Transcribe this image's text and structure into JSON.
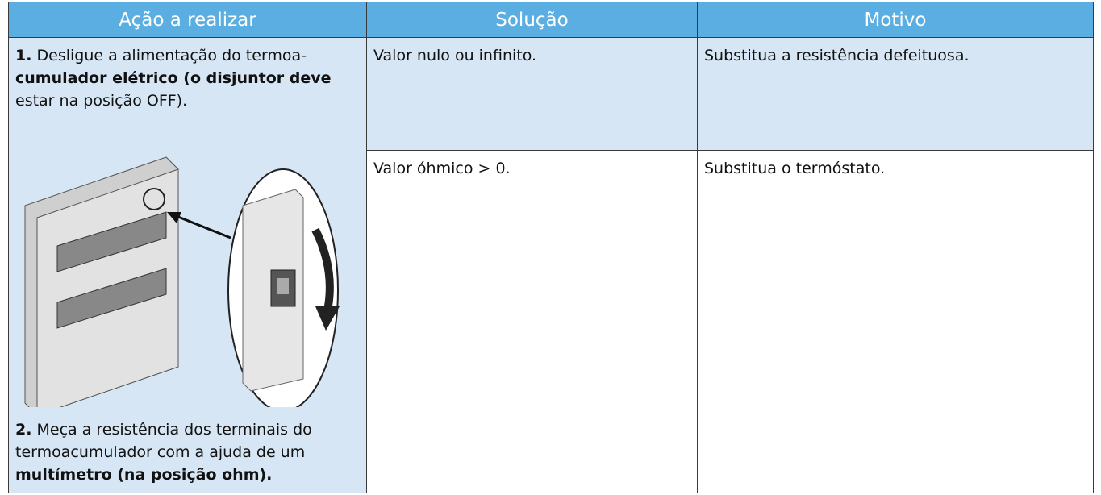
{
  "table": {
    "headers": [
      "Ação a realizar",
      "Solução",
      "Motivo"
    ],
    "step1": {
      "number": "1.",
      "lines": [
        "Desligue a alimentação do termoa-",
        "cumulador elétrico (o disjuntor deve",
        "estar na posição OFF)."
      ]
    },
    "step2": {
      "number": "2.",
      "lines": [
        "Meça a resistência dos terminais do",
        "termoacumulador com a ajuda de um",
        "multímetro (na posição ohm)."
      ]
    },
    "rows": [
      [
        "Valor nulo ou infinito.",
        "Substitua a resistência defeituosa."
      ],
      [
        "Valor óhmico > 0.",
        "Substitua o termóstato."
      ]
    ]
  }
}
